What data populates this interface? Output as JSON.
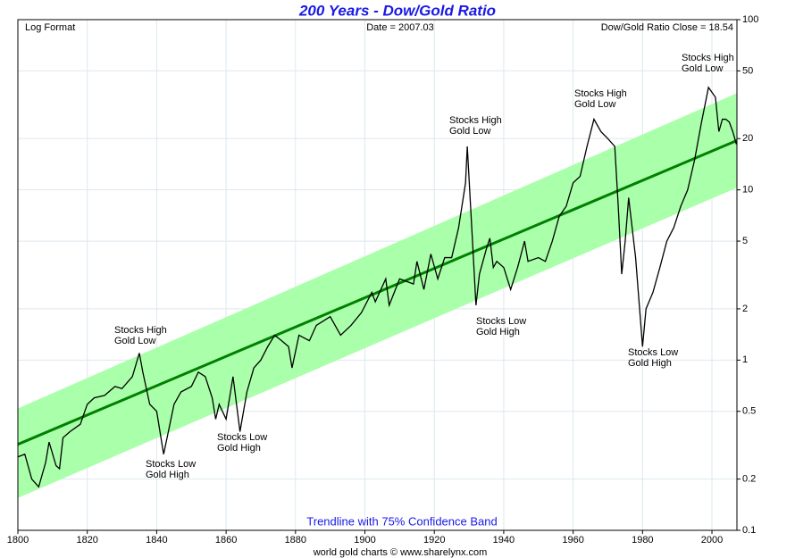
{
  "chart_data": {
    "type": "line",
    "title": "200 Years - Dow/Gold Ratio",
    "subtitle_left": "Log Format",
    "subtitle_center": "Date = 2007.03",
    "subtitle_right": "Dow/Gold Ratio Close = 18.54",
    "band_label": "Trendline with 75% Confidence Band",
    "footer": "world gold charts © www.sharelynx.com",
    "log_scale": true,
    "grid": true,
    "xlim": [
      1800,
      2007.2
    ],
    "xticks": [
      1800,
      1820,
      1840,
      1860,
      1880,
      1900,
      1920,
      1940,
      1960,
      1980,
      2000
    ],
    "ylim": [
      0.1,
      100
    ],
    "yticks": [
      0.1,
      0.2,
      0.5,
      1,
      2,
      5,
      10,
      20,
      50,
      100
    ],
    "x": [
      1800,
      1802,
      1804,
      1806,
      1808,
      1809,
      1811,
      1812,
      1813,
      1815,
      1818,
      1820,
      1822,
      1825,
      1828,
      1830,
      1833,
      1835,
      1836,
      1838,
      1840,
      1842,
      1843,
      1845,
      1847,
      1850,
      1852,
      1854,
      1856,
      1857,
      1858,
      1860,
      1862,
      1864,
      1866,
      1868,
      1870,
      1872,
      1874,
      1876,
      1878,
      1879,
      1881,
      1884,
      1886,
      1890,
      1893,
      1896,
      1899,
      1902,
      1903,
      1906,
      1907,
      1910,
      1914,
      1915,
      1917,
      1919,
      1921,
      1923,
      1925,
      1927,
      1929,
      1929.5,
      1931,
      1932,
      1933,
      1935,
      1936,
      1937,
      1938,
      1940,
      1942,
      1944,
      1946,
      1947,
      1950,
      1952,
      1954,
      1956,
      1958,
      1960,
      1962,
      1964,
      1966,
      1968,
      1970,
      1972,
      1973,
      1974,
      1975,
      1976,
      1977,
      1978,
      1980,
      1981,
      1983,
      1985,
      1987,
      1989,
      1991,
      1993,
      1995,
      1997,
      1999,
      2001,
      2002,
      2003,
      2004,
      2005,
      2006,
      2007.03
    ],
    "series": [
      {
        "color": "#000000",
        "values": [
          0.27,
          0.28,
          0.2,
          0.18,
          0.25,
          0.33,
          0.24,
          0.23,
          0.35,
          0.38,
          0.42,
          0.55,
          0.6,
          0.62,
          0.7,
          0.68,
          0.8,
          1.1,
          0.85,
          0.55,
          0.5,
          0.28,
          0.35,
          0.55,
          0.65,
          0.7,
          0.85,
          0.8,
          0.6,
          0.45,
          0.55,
          0.45,
          0.8,
          0.38,
          0.65,
          0.9,
          1.0,
          1.2,
          1.4,
          1.3,
          1.2,
          0.9,
          1.4,
          1.3,
          1.6,
          1.8,
          1.4,
          1.6,
          1.9,
          2.5,
          2.2,
          3.0,
          2.1,
          3.0,
          2.8,
          3.8,
          2.6,
          4.2,
          3.0,
          4.0,
          4.0,
          6,
          11,
          18,
          5,
          2.1,
          3.2,
          4.5,
          5.2,
          3.5,
          3.8,
          3.5,
          2.6,
          3.5,
          5,
          3.8,
          4.0,
          3.8,
          5,
          7,
          8,
          11,
          12,
          18,
          26,
          22,
          20,
          18,
          8,
          3.2,
          5,
          9,
          6,
          4,
          1.2,
          2,
          2.5,
          3.5,
          5,
          6,
          8,
          10,
          15,
          25,
          40,
          35,
          22,
          26,
          26,
          25,
          22,
          18.54
        ]
      }
    ],
    "trendline": {
      "color": "#008000",
      "x": [
        1800,
        2007.2
      ],
      "values": [
        0.32,
        19.5
      ]
    },
    "band": {
      "color": "#aaffaa",
      "x": [
        1800,
        2007.2
      ],
      "upper": [
        0.52,
        37
      ],
      "lower": [
        0.155,
        10.3
      ]
    },
    "annotations": [
      [
        "Stocks High",
        "Gold Low"
      ],
      [
        "Stocks Low",
        "Gold High"
      ],
      [
        "Stocks Low",
        "Gold High"
      ],
      [
        "Stocks High",
        "Gold Low"
      ],
      [
        "Stocks Low",
        "Gold High"
      ],
      [
        "Stocks High",
        "Gold Low"
      ],
      [
        "Stocks Low",
        "Gold High"
      ],
      [
        "Stocks High",
        "Gold Low"
      ]
    ]
  }
}
